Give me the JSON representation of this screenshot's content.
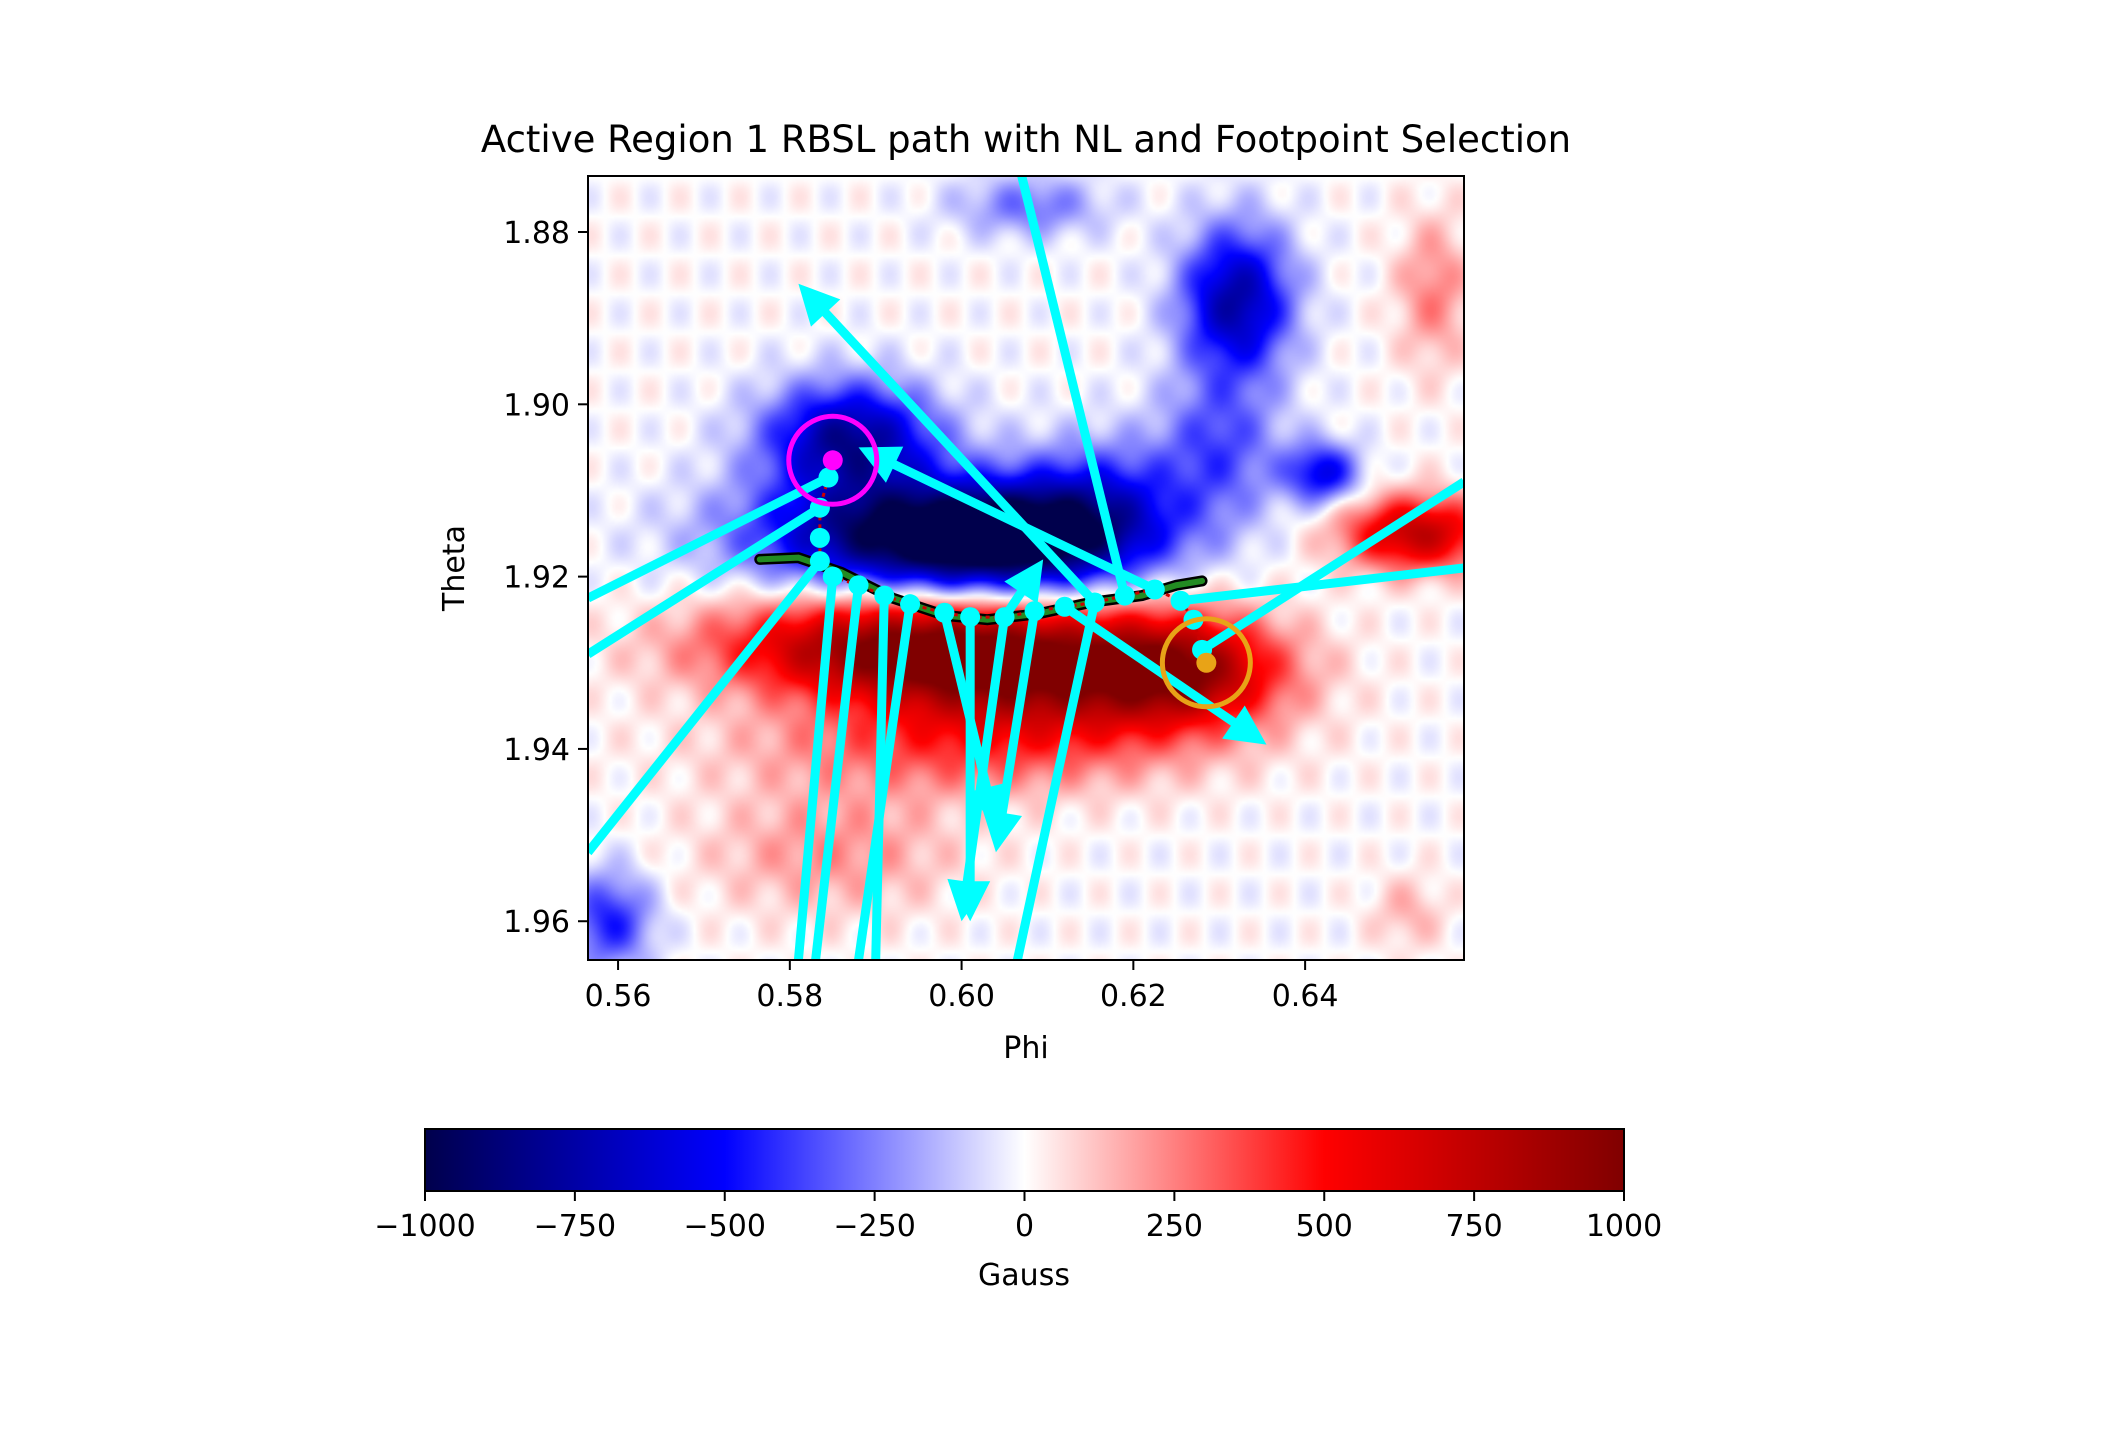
{
  "chart_data": {
    "type": "heatmap",
    "title": "Active Region 1 RBSL path with NL and Footpoint Selection",
    "xlabel": "Phi",
    "ylabel": "Theta",
    "xlim": [
      0.5565,
      0.6585
    ],
    "ylim": [
      1.9645,
      1.8735
    ],
    "y_inverted": true,
    "x_ticks": [
      0.56,
      0.58,
      0.6,
      0.62,
      0.64
    ],
    "x_tick_labels": [
      "0.56",
      "0.58",
      "0.60",
      "0.62",
      "0.64"
    ],
    "y_ticks": [
      1.88,
      1.9,
      1.92,
      1.94,
      1.96
    ],
    "y_tick_labels": [
      "1.88",
      "1.90",
      "1.92",
      "1.94",
      "1.96"
    ],
    "grid": false,
    "colorbar": {
      "label": "Gauss",
      "range": [
        -1000,
        1000
      ],
      "ticks": [
        -1000,
        -750,
        -500,
        -250,
        0,
        250,
        500,
        750,
        1000
      ],
      "tick_labels": [
        "−1000",
        "−750",
        "−500",
        "−250",
        "0",
        "250",
        "500",
        "750",
        "1000"
      ],
      "colormap": "seismic",
      "placement": "bottom"
    },
    "field_blobs": [
      {
        "phi": 0.596,
        "theta": 1.915,
        "sx": 0.014,
        "sy": 0.0045,
        "value": -1000
      },
      {
        "phi": 0.587,
        "theta": 1.904,
        "sx": 0.007,
        "sy": 0.0045,
        "value": -800
      },
      {
        "phi": 0.607,
        "theta": 1.916,
        "sx": 0.01,
        "sy": 0.004,
        "value": -550
      },
      {
        "phi": 0.616,
        "theta": 1.911,
        "sx": 0.007,
        "sy": 0.005,
        "value": -400
      },
      {
        "phi": 0.632,
        "theta": 1.888,
        "sx": 0.0045,
        "sy": 0.006,
        "value": -750
      },
      {
        "phi": 0.63,
        "theta": 1.905,
        "sx": 0.005,
        "sy": 0.006,
        "value": -350
      },
      {
        "phi": 0.642,
        "theta": 1.908,
        "sx": 0.003,
        "sy": 0.0025,
        "value": -550
      },
      {
        "phi": 0.608,
        "theta": 1.877,
        "sx": 0.006,
        "sy": 0.0025,
        "value": -280
      },
      {
        "phi": 0.559,
        "theta": 1.96,
        "sx": 0.0035,
        "sy": 0.004,
        "value": -450
      },
      {
        "phi": 0.59,
        "theta": 1.928,
        "sx": 0.014,
        "sy": 0.004,
        "value": 750
      },
      {
        "phi": 0.608,
        "theta": 1.931,
        "sx": 0.014,
        "sy": 0.005,
        "value": 850
      },
      {
        "phi": 0.626,
        "theta": 1.931,
        "sx": 0.008,
        "sy": 0.0045,
        "value": 700
      },
      {
        "phi": 0.6,
        "theta": 1.94,
        "sx": 0.018,
        "sy": 0.004,
        "value": 300
      },
      {
        "phi": 0.653,
        "theta": 1.915,
        "sx": 0.006,
        "sy": 0.003,
        "value": 750
      },
      {
        "phi": 0.655,
        "theta": 1.887,
        "sx": 0.003,
        "sy": 0.006,
        "value": 250
      },
      {
        "phi": 0.585,
        "theta": 1.952,
        "sx": 0.01,
        "sy": 0.005,
        "value": 220
      },
      {
        "phi": 0.652,
        "theta": 1.959,
        "sx": 0.003,
        "sy": 0.003,
        "value": 150
      }
    ],
    "neutral_line": {
      "phi": [
        0.5765,
        0.581,
        0.586,
        0.592,
        0.598,
        0.603,
        0.609,
        0.615,
        0.621,
        0.625,
        0.628
      ],
      "theta": [
        1.918,
        1.9178,
        1.9195,
        1.9225,
        1.9245,
        1.925,
        1.9243,
        1.923,
        1.9222,
        1.921,
        1.9205
      ]
    },
    "path_points": {
      "phi": [
        0.5845,
        0.5835,
        0.5835,
        0.5835,
        0.585,
        0.588,
        0.591,
        0.594,
        0.598,
        0.601,
        0.605,
        0.6085,
        0.612,
        0.6155,
        0.619,
        0.6225,
        0.6255,
        0.627,
        0.628
      ],
      "theta": [
        1.9085,
        1.912,
        1.9155,
        1.9182,
        1.92,
        1.921,
        1.9222,
        1.9232,
        1.9242,
        1.9247,
        1.9247,
        1.924,
        1.9235,
        1.923,
        1.9222,
        1.9215,
        1.9228,
        1.925,
        1.9285
      ]
    },
    "vectors": [
      {
        "from": [
          0.5845,
          1.9085
        ],
        "to": [
          0.5565,
          1.9225
        ],
        "arrow": false
      },
      {
        "from": [
          0.5835,
          1.912
        ],
        "to": [
          0.5565,
          1.929
        ],
        "arrow": false
      },
      {
        "from": [
          0.5835,
          1.9182
        ],
        "to": [
          0.5565,
          1.952
        ],
        "arrow": false
      },
      {
        "from": [
          0.585,
          1.92
        ],
        "to": [
          0.581,
          1.9645
        ],
        "arrow": false
      },
      {
        "from": [
          0.588,
          1.921
        ],
        "to": [
          0.583,
          1.9645
        ],
        "arrow": false
      },
      {
        "from": [
          0.591,
          1.9222
        ],
        "to": [
          0.59,
          1.9645
        ],
        "arrow": false
      },
      {
        "from": [
          0.594,
          1.9232
        ],
        "to": [
          0.588,
          1.9645
        ],
        "arrow": false
      },
      {
        "from": [
          0.598,
          1.9242
        ],
        "to": [
          0.604,
          1.949
        ],
        "arrow": true
      },
      {
        "from": [
          0.601,
          1.9247
        ],
        "to": [
          0.601,
          1.96
        ],
        "arrow": true
      },
      {
        "from": [
          0.605,
          1.9247
        ],
        "to": [
          0.6,
          1.96
        ],
        "arrow": true
      },
      {
        "from": [
          0.6085,
          1.924
        ],
        "to": [
          0.604,
          1.952
        ],
        "arrow": true
      },
      {
        "from": [
          0.605,
          1.9247
        ],
        "to": [
          0.6095,
          1.918
        ],
        "arrow": true
      },
      {
        "from": [
          0.6155,
          1.923
        ],
        "to": [
          0.6065,
          1.9645
        ],
        "arrow": false
      },
      {
        "from": [
          0.612,
          1.9235
        ],
        "to": [
          0.6355,
          1.9395
        ],
        "arrow": true
      },
      {
        "from": [
          0.6155,
          1.923
        ],
        "to": [
          0.581,
          1.886
        ],
        "arrow": true
      },
      {
        "from": [
          0.619,
          1.9222
        ],
        "to": [
          0.607,
          1.8735
        ],
        "arrow": false
      },
      {
        "from": [
          0.6225,
          1.9215
        ],
        "to": [
          0.588,
          1.905
        ],
        "arrow": true
      },
      {
        "from": [
          0.6255,
          1.9228
        ],
        "to": [
          0.6585,
          1.919
        ],
        "arrow": false
      },
      {
        "from": [
          0.628,
          1.9285
        ],
        "to": [
          0.6585,
          1.909
        ],
        "arrow": false
      }
    ],
    "footpoints": [
      {
        "phi": 0.585,
        "theta": 1.9065,
        "color": "#ff00ff",
        "marker": "circle"
      },
      {
        "phi": 0.6285,
        "theta": 1.93,
        "color": "#e8a317",
        "marker": "circle"
      }
    ],
    "colors": {
      "vectors": "#00ffff",
      "neutral_line": "#228b22",
      "path_dots": "#00ffff",
      "footpoint_negative": "#ff00ff",
      "footpoint_positive": "#e8a317"
    }
  }
}
